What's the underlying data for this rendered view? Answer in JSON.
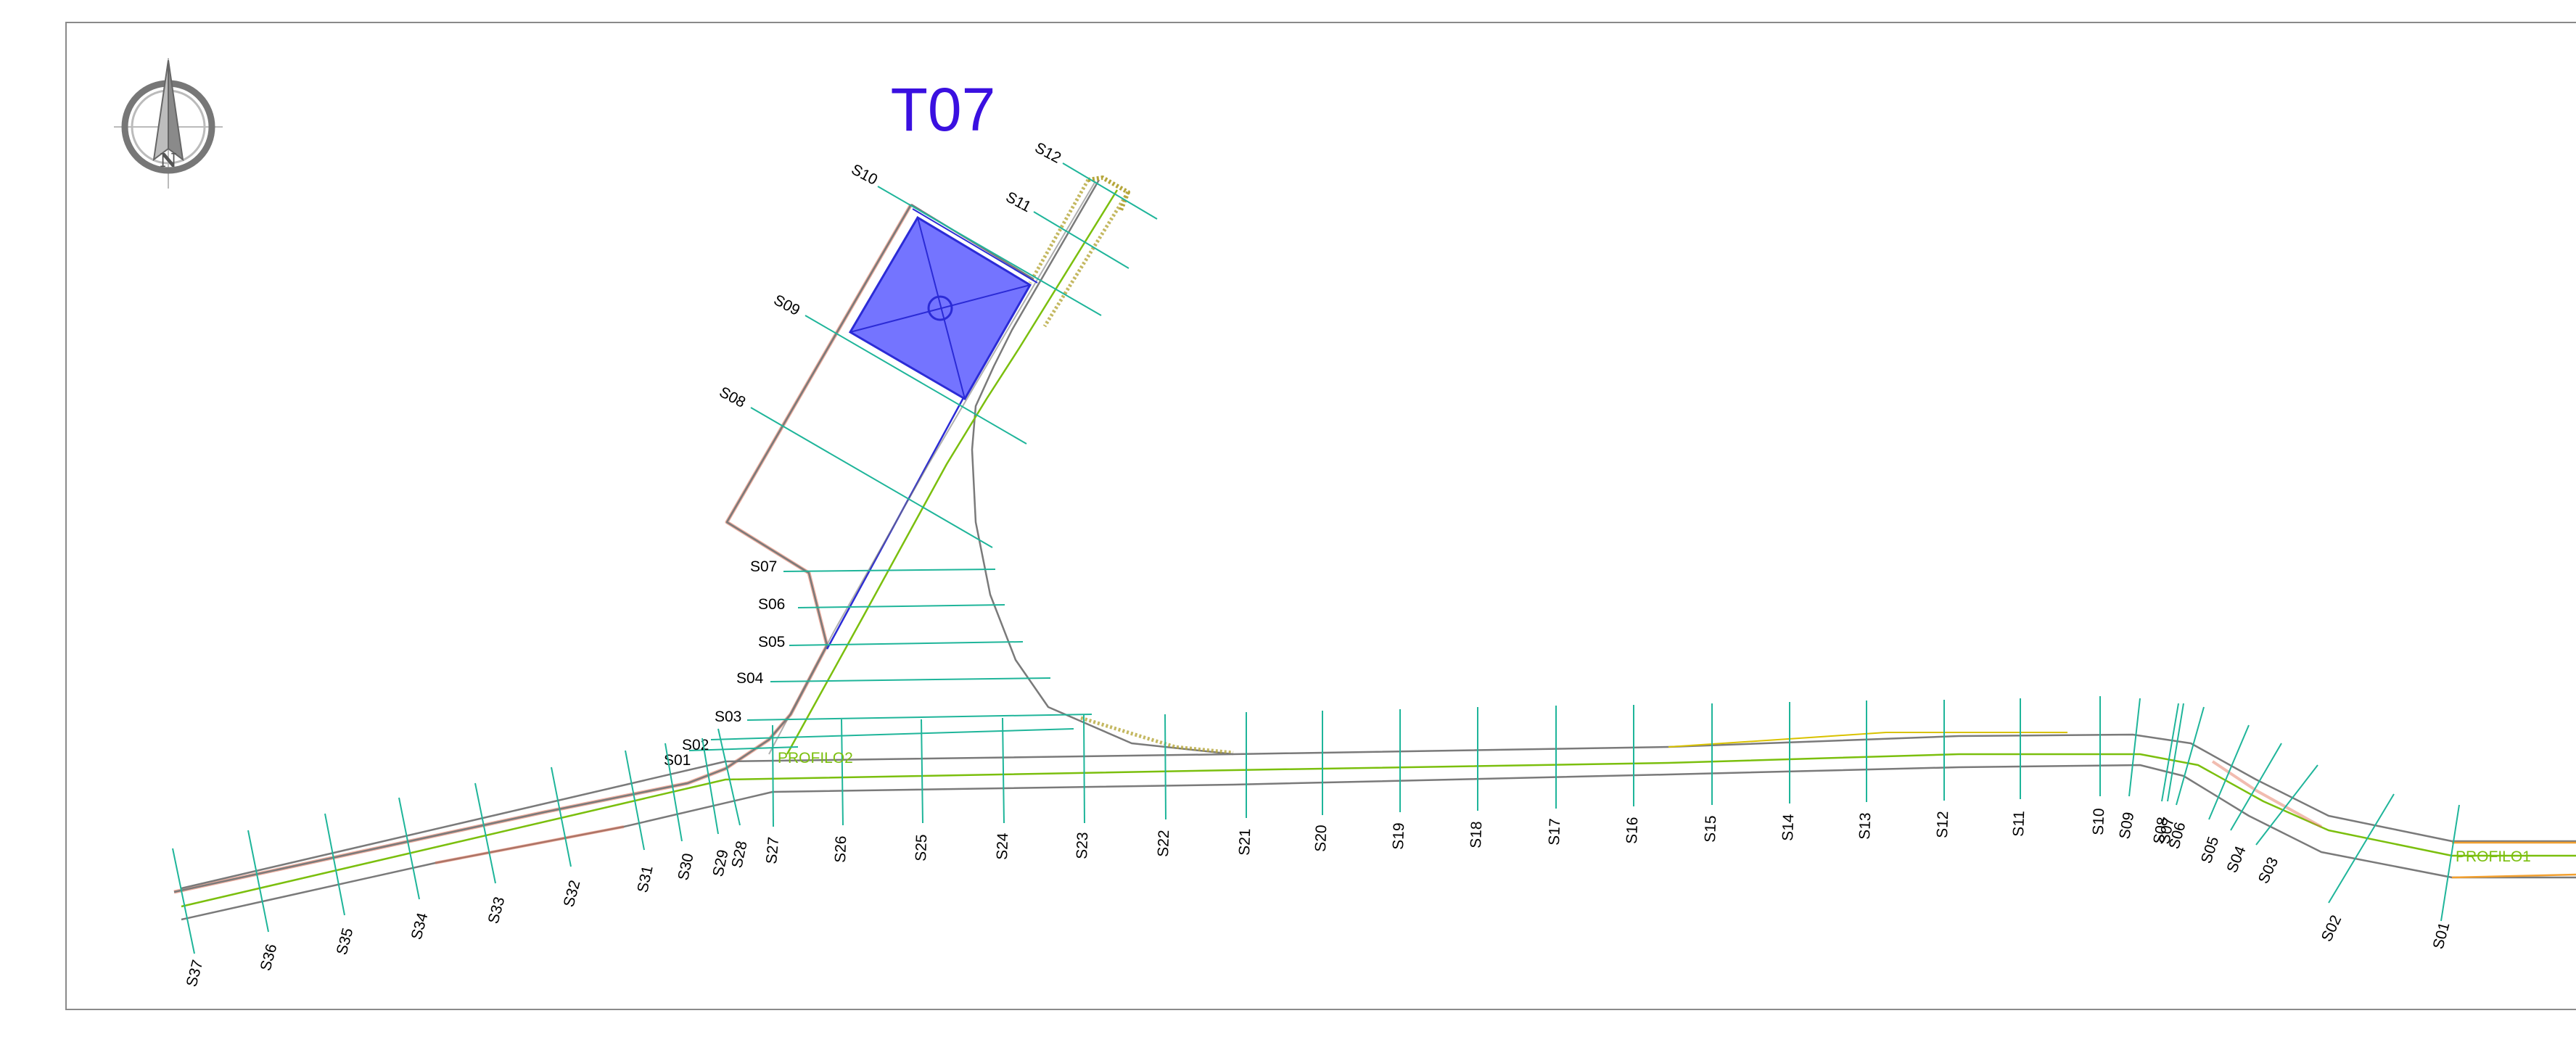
{
  "title": "T07",
  "north_label": "N",
  "profiles": {
    "profilo1": "PROFILO1",
    "profilo2": "PROFILO2"
  },
  "colors": {
    "section_line": "#1fb59a",
    "axis": "#7bbf0e",
    "edge": "#7a7a7a",
    "pad_fill": "#7474ff",
    "pad_stroke": "#2b2bd6",
    "title": "#3a10e0",
    "fence": "#5b6cd8",
    "orange": "#f2a030"
  },
  "sections_profilo1": [
    "S37",
    "S36",
    "S35",
    "S34",
    "S33",
    "S32",
    "S31",
    "S30",
    "S29",
    "S28",
    "S27",
    "S26",
    "S25",
    "S24",
    "S23",
    "S22",
    "S21",
    "S20",
    "S19",
    "S18",
    "S17",
    "S16",
    "S15",
    "S14",
    "S13",
    "S12",
    "S11",
    "S10",
    "S09",
    "S08",
    "S07",
    "S06",
    "S05",
    "S04",
    "S03",
    "S02",
    "S01"
  ],
  "sections_profilo2": [
    "S01",
    "S02",
    "S03",
    "S04",
    "S05",
    "S06",
    "S07",
    "S08",
    "S09",
    "S10",
    "S11",
    "S12"
  ]
}
